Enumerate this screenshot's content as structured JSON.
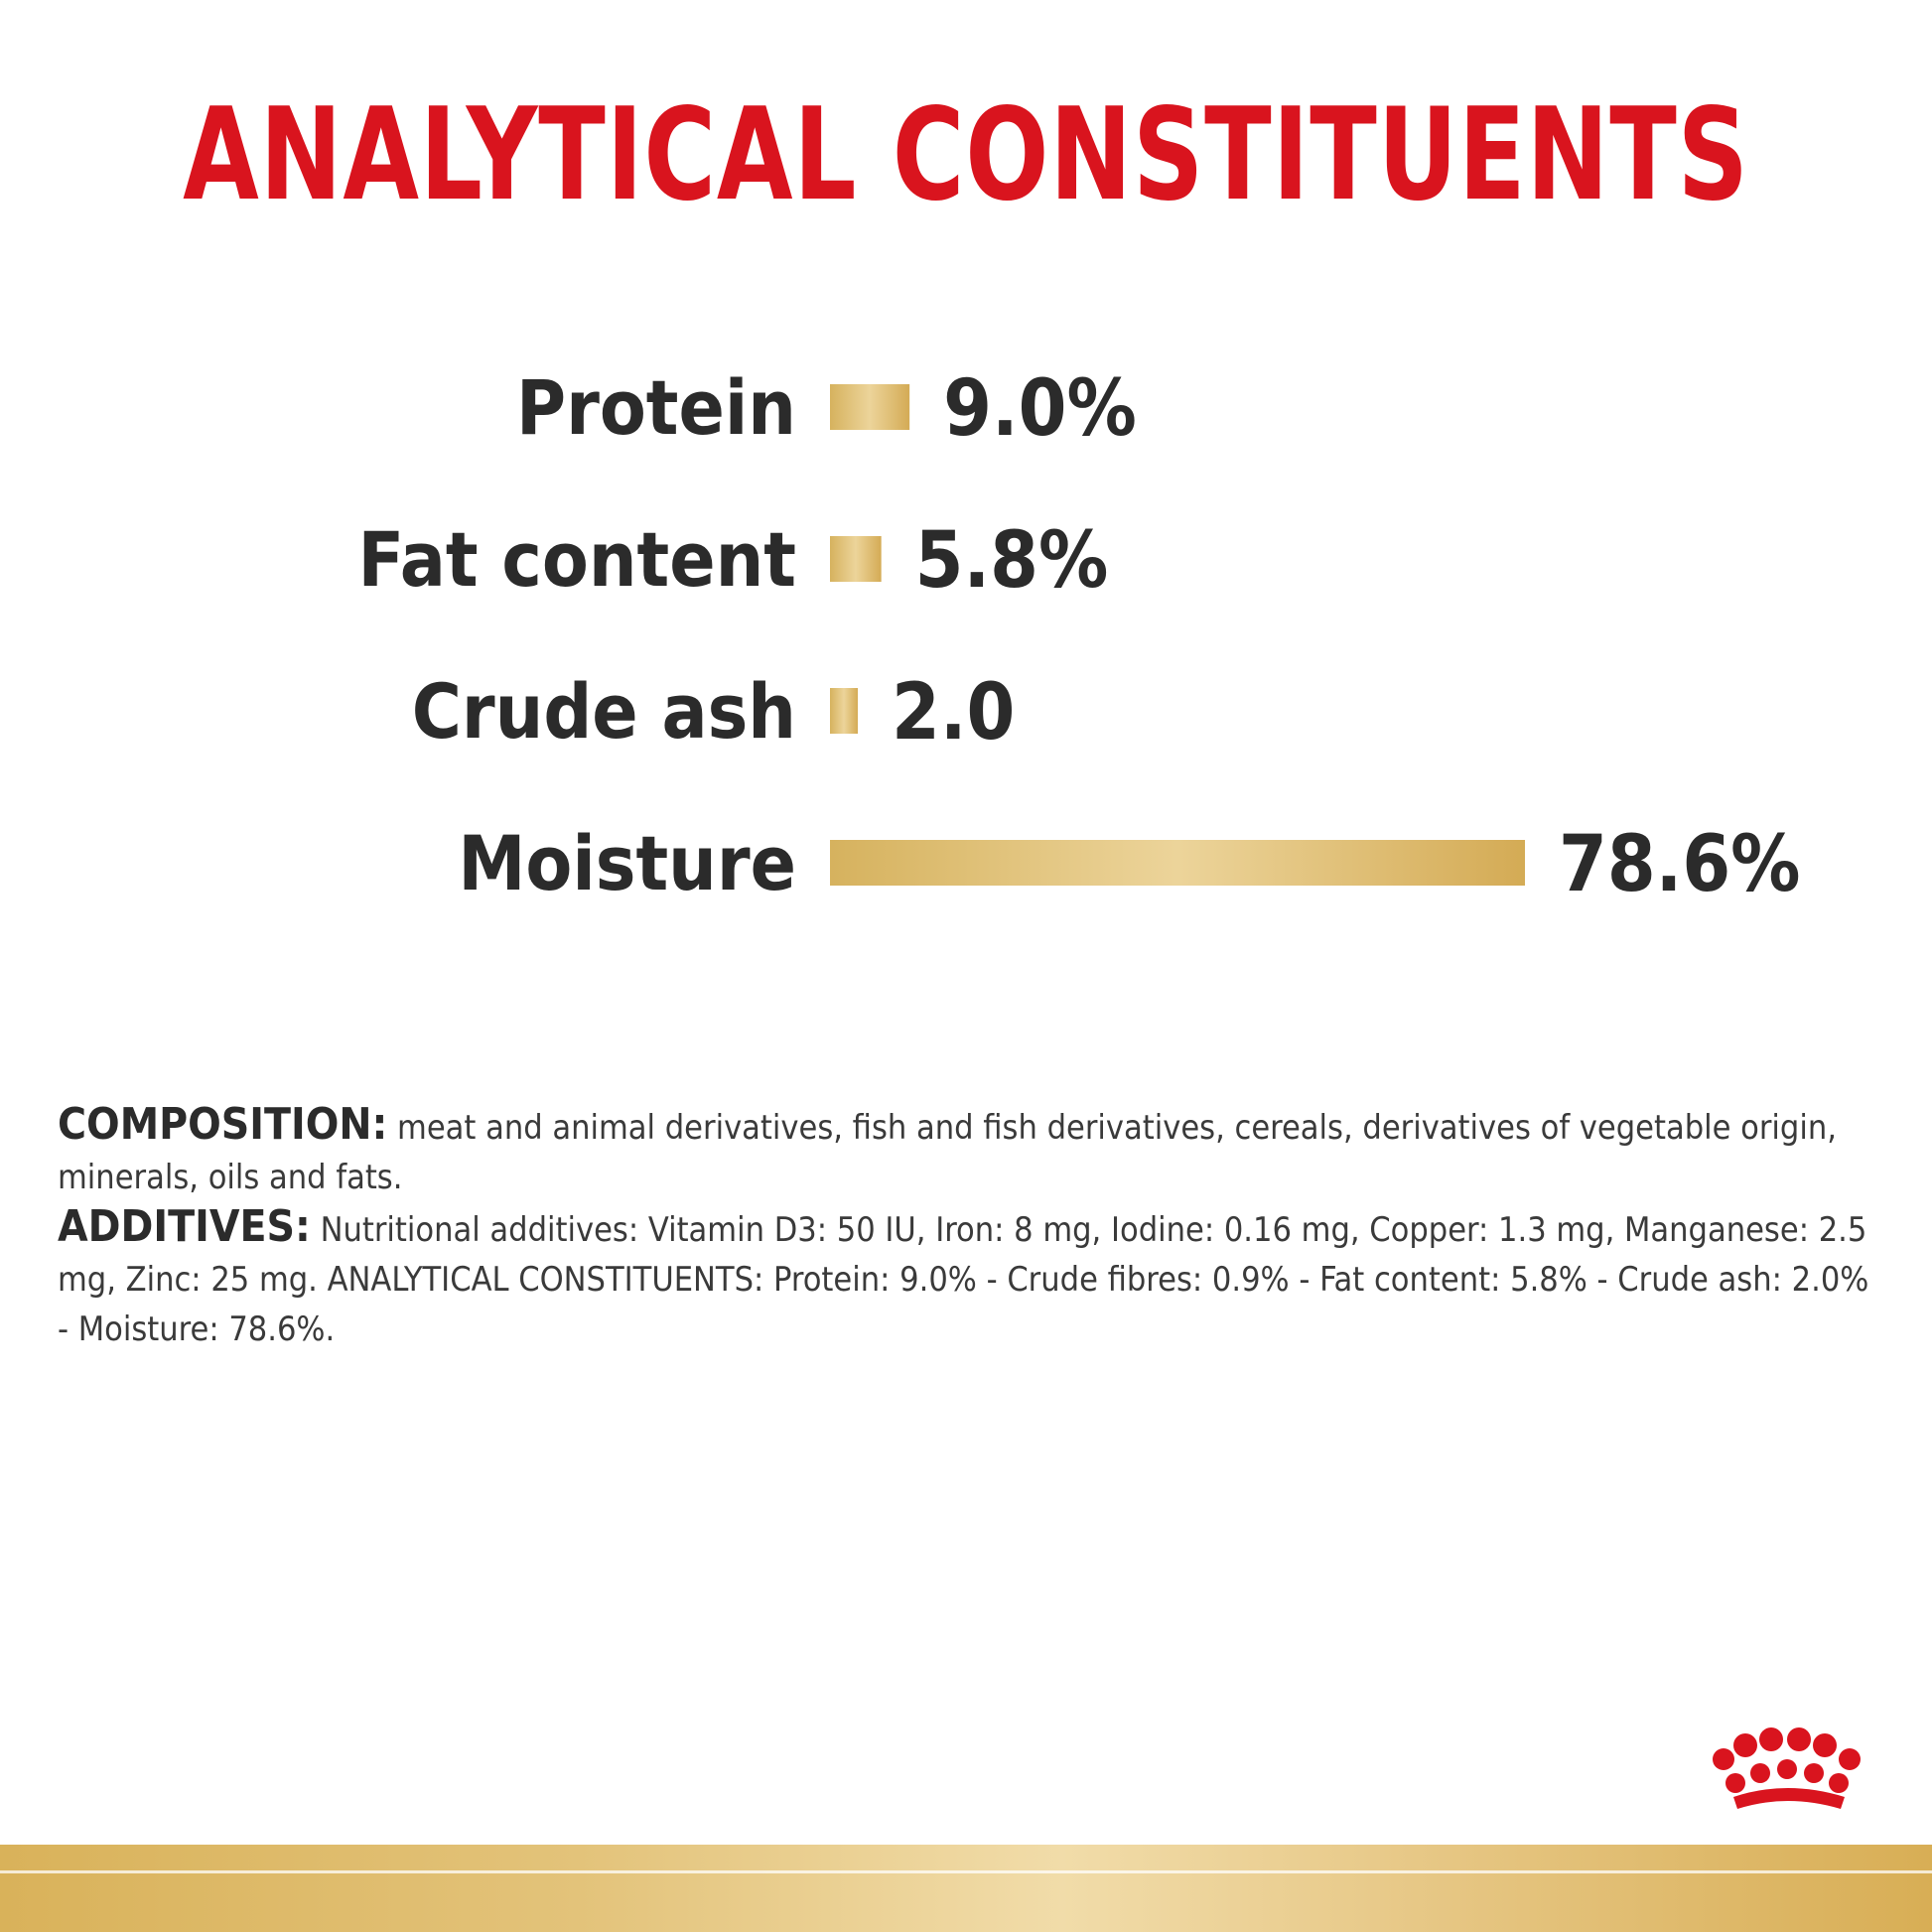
{
  "title": "ANALYTICAL CONSTITUENTS",
  "chart_data": {
    "type": "bar",
    "orientation": "horizontal",
    "title": "ANALYTICAL CONSTITUENTS",
    "categories": [
      "Protein",
      "Fat content",
      "Crude ash",
      "Moisture"
    ],
    "values": [
      9.0,
      5.8,
      2.0,
      78.6
    ],
    "value_labels": [
      "9.0%",
      "5.8%",
      "2.0",
      "78.6%"
    ],
    "unit": "%",
    "xlim": [
      0,
      78.6
    ],
    "grid": false,
    "bar_color_start": "#d6b25e",
    "bar_color_mid": "#ecd49a",
    "bar_color_end": "#d4ab55"
  },
  "composition": {
    "label": "COMPOSITION:",
    "text": " meat and animal derivatives, fish and fish derivatives, cereals, derivatives of vegetable origin, minerals, oils and fats."
  },
  "additives": {
    "label": "ADDITIVES:",
    "text": " Nutritional additives: Vitamin D3: 50 IU, Iron: 8 mg, Iodine: 0.16 mg, Copper: 1.3 mg, Manganese: 2.5 mg, Zinc: 25 mg. ANALYTICAL CONSTITUENTS: Protein: 9.0% - Crude fibres: 0.9% - Fat content: 5.8% - Crude ash: 2.0% - Moisture: 78.6%."
  },
  "logo": {
    "icon": "royal-canin-crown-icon",
    "color": "#d9141e"
  },
  "colors": {
    "accent": "#d9141e",
    "text": "#2b2b2b",
    "gold": "#d9b25a"
  }
}
